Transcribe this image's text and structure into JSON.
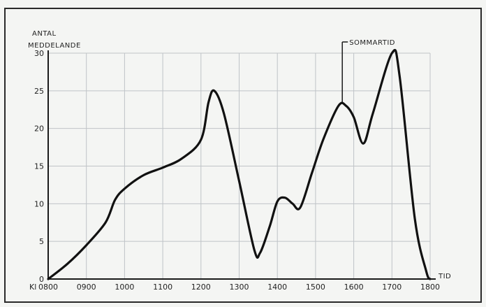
{
  "chart_data": {
    "type": "line",
    "xlabel": "TID",
    "x_prefix": "Kl",
    "ylabel": [
      "ANTAL",
      "MEDDELANDE"
    ],
    "categories": [
      "0800",
      "0900",
      "1000",
      "1100",
      "1200",
      "1300",
      "1400",
      "1500",
      "1600",
      "1700",
      "1800"
    ],
    "yticks": [
      0,
      5,
      10,
      15,
      20,
      25,
      30
    ],
    "ylim": [
      0,
      30
    ],
    "xlim": [
      800,
      1800
    ],
    "grid": true,
    "annotation": {
      "text": "SOMMARTID",
      "x": 1570
    },
    "series": [
      {
        "x": [
          800,
          850,
          900,
          950,
          975,
          1000,
          1050,
          1100,
          1150,
          1200,
          1220,
          1235,
          1260,
          1300,
          1340,
          1355,
          1380,
          1400,
          1420,
          1440,
          1460,
          1490,
          1520,
          1560,
          1580,
          1600,
          1625,
          1650,
          1700,
          1720,
          1760,
          1790,
          1800
        ],
        "values": [
          0,
          2,
          4.5,
          7.5,
          10.5,
          12,
          13.8,
          14.8,
          16,
          18.5,
          23.5,
          25,
          22,
          13,
          3.8,
          3.5,
          7,
          10.3,
          10.8,
          10,
          9.5,
          14,
          18.5,
          23,
          23,
          21.5,
          18,
          22,
          30,
          27,
          8,
          1,
          0
        ]
      }
    ]
  }
}
